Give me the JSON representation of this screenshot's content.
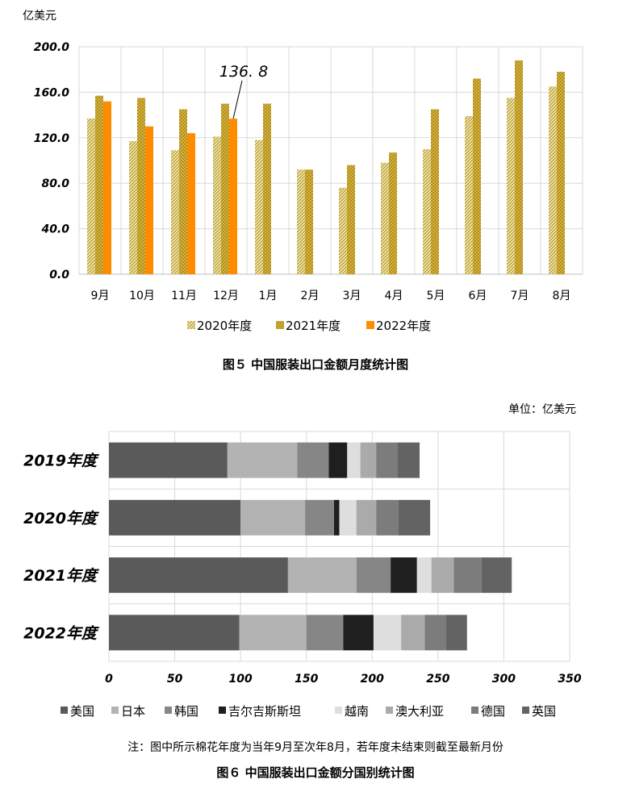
{
  "chart_data": [
    {
      "type": "bar",
      "title": "图５ 中国服装出口金额月度统计图",
      "ylabel": "亿美元",
      "xlabel": "",
      "ylim": [
        0,
        200
      ],
      "yticks": [
        "0.0",
        "40.0",
        "80.0",
        "120.0",
        "160.0",
        "200.0"
      ],
      "categories": [
        "9月",
        "10月",
        "11月",
        "12月",
        "1月",
        "2月",
        "3月",
        "4月",
        "5月",
        "6月",
        "7月",
        "8月"
      ],
      "series": [
        {
          "name": "2020年度",
          "values": [
            137,
            117,
            109,
            121,
            118,
            92,
            76,
            98,
            110,
            139,
            155,
            165
          ]
        },
        {
          "name": "2021年度",
          "values": [
            157,
            155,
            145,
            150,
            150,
            92,
            96,
            107,
            145,
            172,
            188,
            178
          ]
        },
        {
          "name": "2022年度",
          "values": [
            152,
            130,
            124,
            136.8,
            null,
            null,
            null,
            null,
            null,
            null,
            null,
            null
          ]
        }
      ],
      "annotation": {
        "text": "136. 8",
        "category": "12月",
        "series": "2022年度"
      },
      "grid": true,
      "legend": "bottom"
    },
    {
      "type": "bar",
      "orientation": "horizontal",
      "stacked": true,
      "title": "图６ 中国服装出口金额分国别统计图",
      "unit_label": "单位：亿美元",
      "note": "注：图中所示棉花年度为当年9月至次年8月，若年度未结束则截至最新月份",
      "xlim": [
        0,
        350
      ],
      "xticks": [
        "0",
        "50",
        "100",
        "150",
        "200",
        "250",
        "300",
        "350"
      ],
      "categories": [
        "2019年度",
        "2020年度",
        "2021年度",
        "2022年度"
      ],
      "series": [
        {
          "name": "美国",
          "values": [
            90,
            100,
            136,
            99
          ]
        },
        {
          "name": "日本",
          "values": [
            53,
            49,
            52,
            51
          ]
        },
        {
          "name": "韩国",
          "values": [
            24,
            22,
            26,
            28
          ]
        },
        {
          "name": "吉尔吉斯斯坦",
          "values": [
            14,
            4,
            20,
            23
          ]
        },
        {
          "name": "越南",
          "values": [
            10,
            13,
            11,
            21
          ]
        },
        {
          "name": "澳大利亚",
          "values": [
            12,
            15,
            17,
            18
          ]
        },
        {
          "name": "德国",
          "values": [
            16,
            17,
            21,
            16
          ]
        },
        {
          "name": "英国",
          "values": [
            17,
            24,
            23,
            16
          ]
        }
      ],
      "grid": true,
      "legend": "bottom"
    }
  ],
  "colors": {
    "series2020": "#c9b64a",
    "series2021": "#b8900f",
    "series2022": "#ff8c00",
    "hbar": [
      "#5a5a5a",
      "#b3b3b3",
      "#868686",
      "#1f1f1f",
      "#dedede",
      "#aaaaaa",
      "#7c7c7c",
      "#636363"
    ]
  }
}
